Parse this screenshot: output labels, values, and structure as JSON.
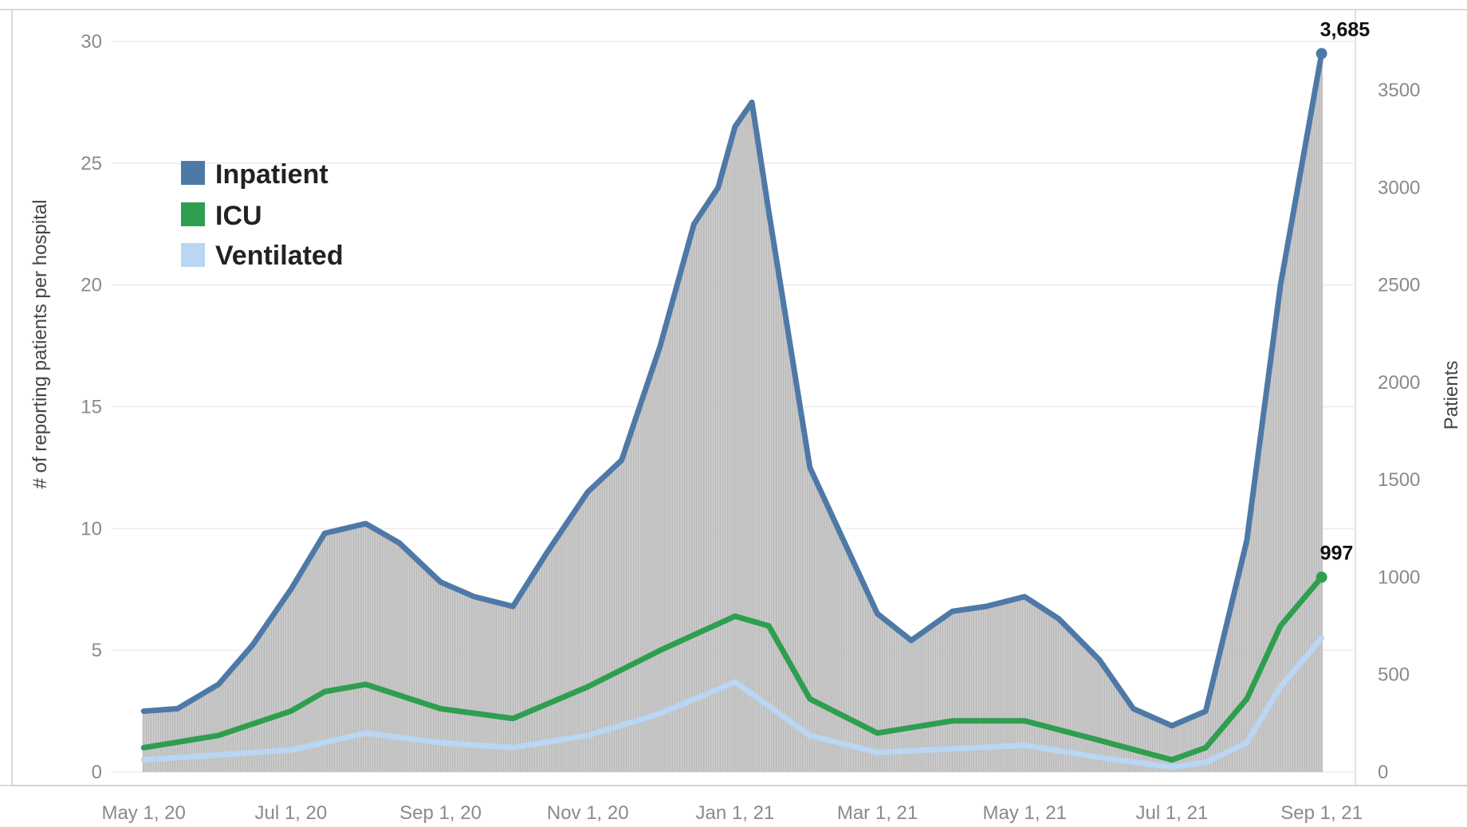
{
  "colors": {
    "inpatient": "#4E79A7",
    "icu": "#2E9E4F",
    "ventilated": "#B9D6F5",
    "bars": "#c9c9c9",
    "bar_edge": "#8e8e8e",
    "grid": "#ececec"
  },
  "chart_data": {
    "type": "area",
    "grid": true,
    "legend_placement": "top-left",
    "x_tick_labels": [
      "May 1, 20",
      "Jul 1, 20",
      "Sep 1, 20",
      "Nov 1, 20",
      "Jan 1, 21",
      "Mar 1, 21",
      "May 1, 21",
      "Jul 1, 21",
      "Sep 1, 21"
    ],
    "x_tick_dates": [
      "2020-05-01",
      "2020-07-01",
      "2020-09-01",
      "2020-11-01",
      "2021-01-01",
      "2021-03-01",
      "2021-05-01",
      "2021-07-01",
      "2021-09-01"
    ],
    "x_range": [
      "2020-04-25",
      "2021-09-15"
    ],
    "ylabel_left": "# of reporting patients per hospital",
    "ylabel_right": "Patients",
    "ylim_left": [
      0,
      30
    ],
    "ylim_right": [
      0,
      3750
    ],
    "yticks_left": [
      0,
      5,
      10,
      15,
      20,
      25,
      30
    ],
    "yticks_right": [
      0,
      500,
      1000,
      1500,
      2000,
      2500,
      3000,
      3500
    ],
    "legend": [
      "Inpatient",
      "ICU",
      "Ventilated"
    ],
    "end_labels": {
      "inpatient": "3,685",
      "icu": "997"
    },
    "bars_series": "Inpatient per hospital",
    "series": [
      {
        "name": "Inpatient",
        "axis": "left",
        "key": "inpatient",
        "points": [
          [
            "2020-05-01",
            2.5
          ],
          [
            "2020-05-15",
            2.6
          ],
          [
            "2020-06-01",
            3.6
          ],
          [
            "2020-06-15",
            5.2
          ],
          [
            "2020-07-01",
            7.5
          ],
          [
            "2020-07-15",
            9.8
          ],
          [
            "2020-08-01",
            10.2
          ],
          [
            "2020-08-15",
            9.4
          ],
          [
            "2020-09-01",
            7.8
          ],
          [
            "2020-09-15",
            7.2
          ],
          [
            "2020-10-01",
            6.8
          ],
          [
            "2020-10-15",
            9.0
          ],
          [
            "2020-11-01",
            11.5
          ],
          [
            "2020-11-15",
            12.8
          ],
          [
            "2020-12-01",
            17.5
          ],
          [
            "2020-12-15",
            22.5
          ],
          [
            "2020-12-25",
            24.0
          ],
          [
            "2021-01-01",
            26.5
          ],
          [
            "2021-01-08",
            27.5
          ],
          [
            "2021-01-15",
            23.0
          ],
          [
            "2021-02-01",
            12.5
          ],
          [
            "2021-02-15",
            9.5
          ],
          [
            "2021-03-01",
            6.5
          ],
          [
            "2021-03-15",
            5.4
          ],
          [
            "2021-04-01",
            6.6
          ],
          [
            "2021-04-15",
            6.8
          ],
          [
            "2021-05-01",
            7.2
          ],
          [
            "2021-05-15",
            6.3
          ],
          [
            "2021-06-01",
            4.6
          ],
          [
            "2021-06-15",
            2.6
          ],
          [
            "2021-07-01",
            1.9
          ],
          [
            "2021-07-15",
            2.5
          ],
          [
            "2021-08-01",
            9.5
          ],
          [
            "2021-08-15",
            20.0
          ],
          [
            "2021-09-01",
            29.5
          ]
        ]
      },
      {
        "name": "ICU",
        "axis": "left",
        "key": "icu",
        "points": [
          [
            "2020-05-01",
            1.0
          ],
          [
            "2020-06-01",
            1.5
          ],
          [
            "2020-07-01",
            2.5
          ],
          [
            "2020-07-15",
            3.3
          ],
          [
            "2020-08-01",
            3.6
          ],
          [
            "2020-09-01",
            2.6
          ],
          [
            "2020-10-01",
            2.2
          ],
          [
            "2020-11-01",
            3.5
          ],
          [
            "2020-12-01",
            5.0
          ],
          [
            "2021-01-01",
            6.4
          ],
          [
            "2021-01-15",
            6.0
          ],
          [
            "2021-02-01",
            3.0
          ],
          [
            "2021-03-01",
            1.6
          ],
          [
            "2021-04-01",
            2.1
          ],
          [
            "2021-05-01",
            2.1
          ],
          [
            "2021-06-01",
            1.3
          ],
          [
            "2021-07-01",
            0.5
          ],
          [
            "2021-07-15",
            1.0
          ],
          [
            "2021-08-01",
            3.0
          ],
          [
            "2021-08-15",
            6.0
          ],
          [
            "2021-09-01",
            8.0
          ]
        ]
      },
      {
        "name": "Ventilated",
        "axis": "left",
        "key": "ventilated",
        "points": [
          [
            "2020-05-01",
            0.5
          ],
          [
            "2020-07-01",
            0.9
          ],
          [
            "2020-08-01",
            1.6
          ],
          [
            "2020-09-01",
            1.2
          ],
          [
            "2020-10-01",
            1.0
          ],
          [
            "2020-11-01",
            1.5
          ],
          [
            "2020-12-01",
            2.4
          ],
          [
            "2021-01-01",
            3.7
          ],
          [
            "2021-02-01",
            1.5
          ],
          [
            "2021-03-01",
            0.8
          ],
          [
            "2021-05-01",
            1.1
          ],
          [
            "2021-06-01",
            0.6
          ],
          [
            "2021-07-01",
            0.2
          ],
          [
            "2021-07-15",
            0.4
          ],
          [
            "2021-08-01",
            1.2
          ],
          [
            "2021-08-15",
            3.5
          ],
          [
            "2021-09-01",
            5.5
          ]
        ]
      }
    ]
  }
}
